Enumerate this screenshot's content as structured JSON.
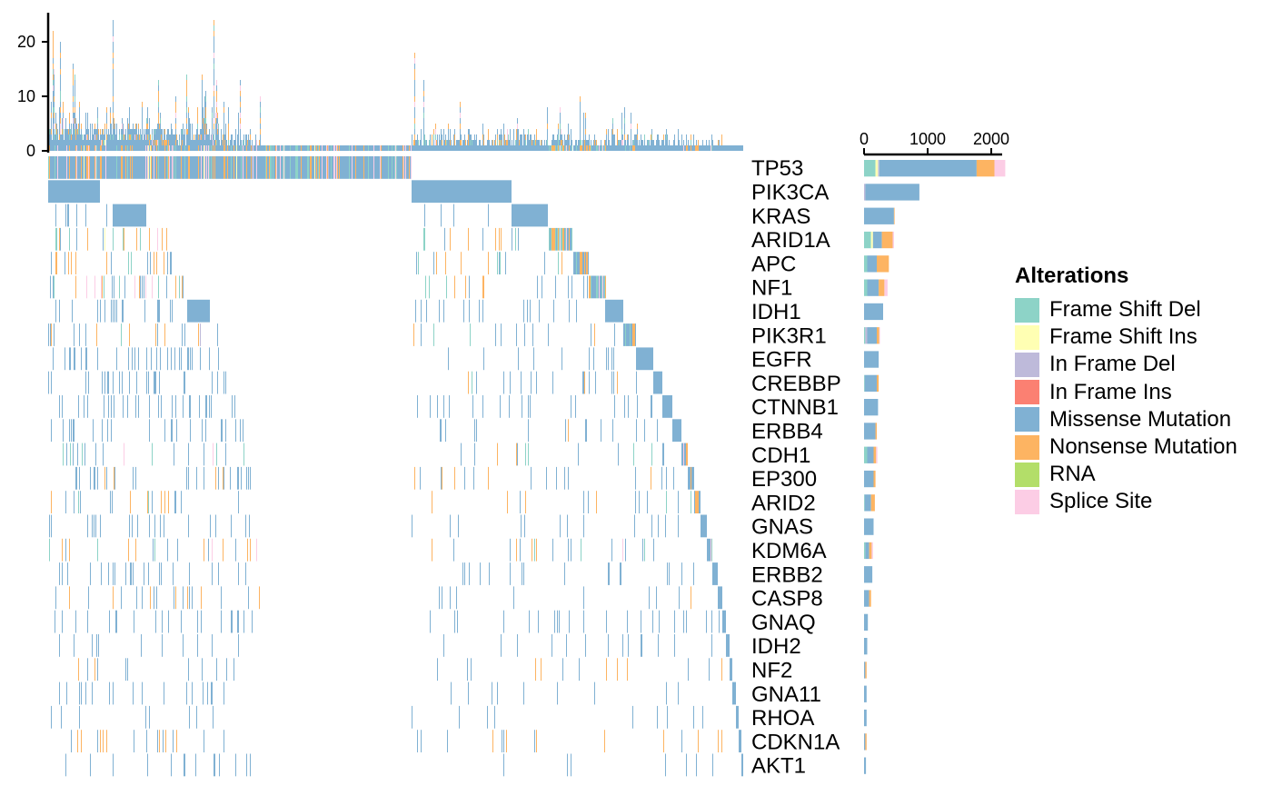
{
  "chart_data": {
    "type": "oncoplot",
    "legend_title": "Alterations",
    "alteration_types": [
      {
        "name": "Frame Shift Del",
        "color": "#8DD3C7"
      },
      {
        "name": "Frame Shift Ins",
        "color": "#FFFFB3"
      },
      {
        "name": "In Frame Del",
        "color": "#BEBADA"
      },
      {
        "name": "In Frame Ins",
        "color": "#FB8072"
      },
      {
        "name": "Missense Mutation",
        "color": "#80B1D3"
      },
      {
        "name": "Nonsense Mutation",
        "color": "#FDB462"
      },
      {
        "name": "RNA",
        "color": "#B3DE69"
      },
      {
        "name": "Splice Site",
        "color": "#FCCDE5"
      }
    ],
    "top_barplot": {
      "ylim": [
        0,
        24
      ],
      "ticks": [
        0,
        10,
        20
      ],
      "max_value": 24
    },
    "gene_barplot": {
      "xlim": [
        0,
        2200
      ],
      "ticks": [
        0,
        1000,
        2000
      ]
    },
    "genes": [
      {
        "name": "TP53",
        "counts": {
          "Frame Shift Del": 180,
          "Frame Shift Ins": 40,
          "In Frame Del": 20,
          "Missense Mutation": 1530,
          "Nonsense Mutation": 280,
          "Splice Site": 170
        }
      },
      {
        "name": "PIK3CA",
        "counts": {
          "Missense Mutation": 850,
          "In Frame Del": 20
        }
      },
      {
        "name": "KRAS",
        "counts": {
          "Missense Mutation": 470,
          "Nonsense Mutation": 10
        }
      },
      {
        "name": "ARID1A",
        "counts": {
          "Frame Shift Del": 110,
          "Frame Shift Ins": 30,
          "Missense Mutation": 140,
          "Nonsense Mutation": 170,
          "Splice Site": 20
        }
      },
      {
        "name": "APC",
        "counts": {
          "Frame Shift Del": 50,
          "Missense Mutation": 150,
          "Nonsense Mutation": 190
        }
      },
      {
        "name": "NF1",
        "counts": {
          "Frame Shift Del": 50,
          "Missense Mutation": 180,
          "Nonsense Mutation": 90,
          "Splice Site": 50
        }
      },
      {
        "name": "IDH1",
        "counts": {
          "Missense Mutation": 300
        }
      },
      {
        "name": "PIK3R1",
        "counts": {
          "Frame Shift Del": 20,
          "In Frame Del": 30,
          "Missense Mutation": 150,
          "Nonsense Mutation": 40,
          "Splice Site": 10
        }
      },
      {
        "name": "EGFR",
        "counts": {
          "Missense Mutation": 230
        }
      },
      {
        "name": "CREBBP",
        "counts": {
          "Missense Mutation": 190,
          "Nonsense Mutation": 30,
          "Frame Shift Del": 10
        }
      },
      {
        "name": "CTNNB1",
        "counts": {
          "Missense Mutation": 220
        }
      },
      {
        "name": "ERBB4",
        "counts": {
          "Missense Mutation": 180,
          "Nonsense Mutation": 20
        }
      },
      {
        "name": "CDH1",
        "counts": {
          "Frame Shift Del": 50,
          "Missense Mutation": 100,
          "Nonsense Mutation": 40,
          "Splice Site": 20
        }
      },
      {
        "name": "EP300",
        "counts": {
          "Missense Mutation": 150,
          "Nonsense Mutation": 30
        }
      },
      {
        "name": "ARID2",
        "counts": {
          "Missense Mutation": 100,
          "Nonsense Mutation": 60,
          "Frame Shift Del": 10
        }
      },
      {
        "name": "GNAS",
        "counts": {
          "Missense Mutation": 150
        }
      },
      {
        "name": "KDM6A",
        "counts": {
          "Frame Shift Del": 20,
          "Missense Mutation": 60,
          "Nonsense Mutation": 40,
          "Splice Site": 20
        }
      },
      {
        "name": "ERBB2",
        "counts": {
          "Missense Mutation": 130
        }
      },
      {
        "name": "CASP8",
        "counts": {
          "Missense Mutation": 80,
          "Nonsense Mutation": 30
        }
      },
      {
        "name": "GNAQ",
        "counts": {
          "Missense Mutation": 60
        }
      },
      {
        "name": "IDH2",
        "counts": {
          "Missense Mutation": 50
        }
      },
      {
        "name": "NF2",
        "counts": {
          "Missense Mutation": 20,
          "Nonsense Mutation": 20
        }
      },
      {
        "name": "GNA11",
        "counts": {
          "Missense Mutation": 40
        }
      },
      {
        "name": "RHOA",
        "counts": {
          "Missense Mutation": 40
        }
      },
      {
        "name": "CDKN1A",
        "counts": {
          "Missense Mutation": 20,
          "Nonsense Mutation": 20
        }
      },
      {
        "name": "AKT1",
        "counts": {
          "Missense Mutation": 30
        }
      }
    ]
  }
}
